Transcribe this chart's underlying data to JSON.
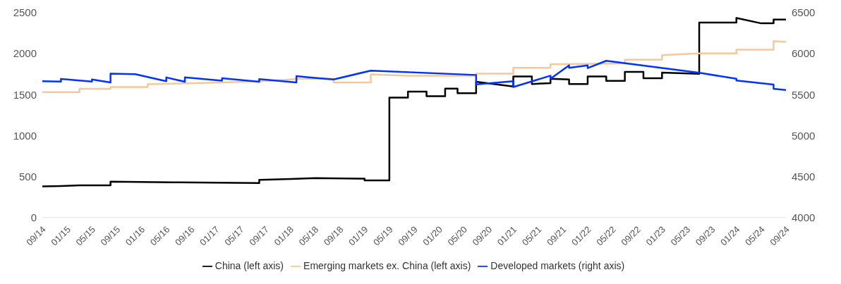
{
  "chart_data": {
    "type": "line",
    "legend": "bottom",
    "grid": false,
    "xlim": [
      "2014-09",
      "2024-09"
    ],
    "xticks": [
      {
        "value": "2014-09",
        "label": "09/14"
      },
      {
        "value": "2015-01",
        "label": "01/15"
      },
      {
        "value": "2015-05",
        "label": "05/15"
      },
      {
        "value": "2015-09",
        "label": "09/15"
      },
      {
        "value": "2016-01",
        "label": "01/16"
      },
      {
        "value": "2016-05",
        "label": "05/16"
      },
      {
        "value": "2016-09",
        "label": "09/16"
      },
      {
        "value": "2017-01",
        "label": "01/17"
      },
      {
        "value": "2017-05",
        "label": "05/17"
      },
      {
        "value": "2017-09",
        "label": "09/17"
      },
      {
        "value": "2018-01",
        "label": "01/18"
      },
      {
        "value": "2018-05",
        "label": "05/18"
      },
      {
        "value": "2018-09",
        "label": "09/18"
      },
      {
        "value": "2019-01",
        "label": "01/19"
      },
      {
        "value": "2019-05",
        "label": "05/19"
      },
      {
        "value": "2019-09",
        "label": "09/19"
      },
      {
        "value": "2020-01",
        "label": "01/20"
      },
      {
        "value": "2020-05",
        "label": "05/20"
      },
      {
        "value": "2020-09",
        "label": "09/20"
      },
      {
        "value": "2021-01",
        "label": "01/21"
      },
      {
        "value": "2021-05",
        "label": "05/21"
      },
      {
        "value": "2021-09",
        "label": "09/21"
      },
      {
        "value": "2022-01",
        "label": "01/22"
      },
      {
        "value": "2022-05",
        "label": "05/22"
      },
      {
        "value": "2022-09",
        "label": "09/22"
      },
      {
        "value": "2023-01",
        "label": "01/23"
      },
      {
        "value": "2023-05",
        "label": "05/23"
      },
      {
        "value": "2023-09",
        "label": "09/23"
      },
      {
        "value": "2024-01",
        "label": "01/24"
      },
      {
        "value": "2024-05",
        "label": "05/24"
      },
      {
        "value": "2024-09",
        "label": "09/24"
      }
    ],
    "ylim": [
      0,
      2500
    ],
    "yticks": [
      0,
      500,
      1000,
      1500,
      2000,
      2500
    ],
    "y2lim": [
      4000,
      6500
    ],
    "y2ticks": [
      4000,
      4500,
      5000,
      5500,
      6000,
      6500
    ],
    "series": [
      {
        "name": "China (left axis)",
        "color": "#000000",
        "x": [
          "2014-09",
          "2014-12",
          "2015-03",
          "2015-08",
          "2015-08",
          "2016-06",
          "2017-08",
          "2017-08",
          "2018-01",
          "2018-05",
          "2019-01",
          "2019-01",
          "2019-05",
          "2019-05",
          "2019-08",
          "2019-08",
          "2019-11",
          "2019-11",
          "2020-02",
          "2020-02",
          "2020-04",
          "2020-04",
          "2020-07",
          "2020-07",
          "2021-01",
          "2021-01",
          "2021-04",
          "2021-04",
          "2021-07",
          "2021-07",
          "2021-10",
          "2021-10",
          "2022-01",
          "2022-01",
          "2022-04",
          "2022-04",
          "2022-07",
          "2022-07",
          "2022-10",
          "2022-10",
          "2023-01",
          "2023-01",
          "2023-07",
          "2023-07",
          "2024-01",
          "2024-01",
          "2024-05",
          "2024-07",
          "2024-07",
          "2024-09"
        ],
        "values": [
          380,
          385,
          392,
          392,
          438,
          430,
          420,
          460,
          470,
          481,
          475,
          454,
          454,
          1463,
          1463,
          1537,
          1537,
          1481,
          1481,
          1574,
          1574,
          1518,
          1518,
          1657,
          1600,
          1722,
          1722,
          1630,
          1640,
          1694,
          1685,
          1630,
          1630,
          1722,
          1722,
          1667,
          1667,
          1778,
          1778,
          1700,
          1700,
          1770,
          1755,
          2380,
          2380,
          2435,
          2370,
          2370,
          2417,
          2417
        ]
      },
      {
        "name": "Emerging markets ex. China (left axis)",
        "color": "#f5c89b",
        "x": [
          "2014-09",
          "2015-03",
          "2015-03",
          "2015-08",
          "2015-08",
          "2016-02",
          "2016-02",
          "2017-02",
          "2017-08",
          "2018-03",
          "2018-08",
          "2018-08",
          "2019-02",
          "2019-02",
          "2019-08",
          "2020-07",
          "2020-07",
          "2021-01",
          "2021-01",
          "2021-07",
          "2021-07",
          "2022-07",
          "2022-07",
          "2023-01",
          "2023-01",
          "2023-07",
          "2024-01",
          "2024-01",
          "2024-07",
          "2024-07",
          "2024-09"
        ],
        "values": [
          1531,
          1531,
          1571,
          1571,
          1593,
          1593,
          1627,
          1648,
          1664,
          1694,
          1694,
          1648,
          1648,
          1747,
          1731,
          1731,
          1756,
          1756,
          1827,
          1827,
          1870,
          1880,
          1926,
          1926,
          1981,
          2003,
          2003,
          2049,
          2049,
          2151,
          2145
        ]
      },
      {
        "name": "Developed markets (right axis)",
        "color": "#0033ff",
        "axis": "y2",
        "x": [
          "2014-09",
          "2014-12",
          "2014-12",
          "2015-05",
          "2015-05",
          "2015-08",
          "2015-08",
          "2015-12",
          "2016-05",
          "2016-05",
          "2016-08",
          "2016-08",
          "2017-02",
          "2017-02",
          "2017-08",
          "2017-08",
          "2018-02",
          "2018-02",
          "2018-04",
          "2018-08",
          "2018-08",
          "2019-02",
          "2020-07",
          "2020-07",
          "2021-01",
          "2021-01",
          "2021-07",
          "2021-07",
          "2021-10",
          "2021-10",
          "2022-01",
          "2022-01",
          "2022-04",
          "2023-07",
          "2024-01",
          "2024-01",
          "2024-07",
          "2024-07",
          "2024-09"
        ],
        "values": [
          5664,
          5660,
          5691,
          5660,
          5685,
          5648,
          5756,
          5750,
          5664,
          5710,
          5657,
          5710,
          5670,
          5700,
          5657,
          5690,
          5648,
          5725,
          5710,
          5685,
          5685,
          5793,
          5740,
          5626,
          5664,
          5593,
          5731,
          5694,
          5858,
          5827,
          5858,
          5824,
          5913,
          5766,
          5694,
          5673,
          5623,
          5571,
          5556
        ]
      }
    ]
  }
}
